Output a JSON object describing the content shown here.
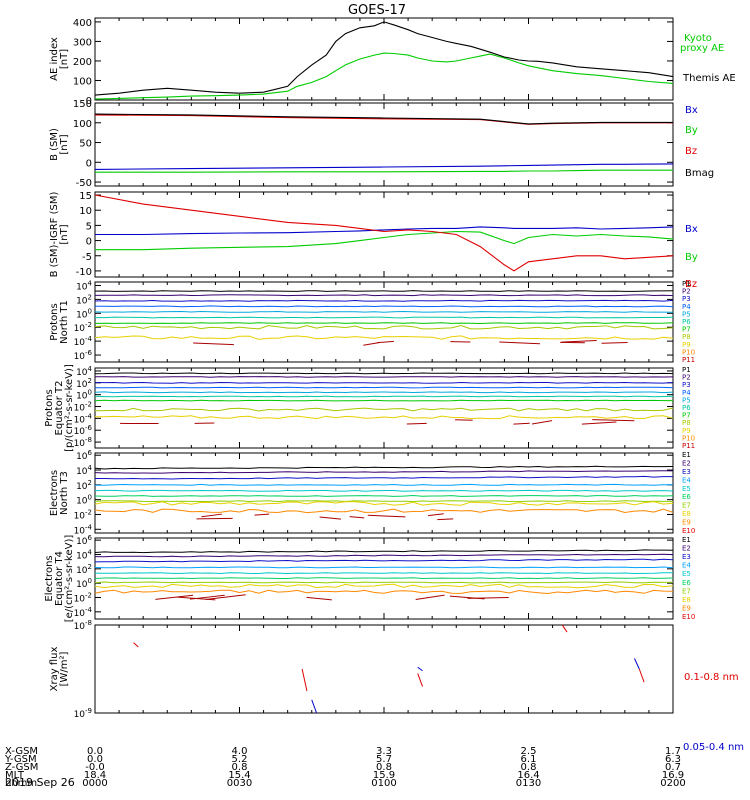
{
  "title": "GOES-17",
  "date": "2019 Sep 26",
  "colors": {
    "black": "#000000",
    "red": "#e00000",
    "green": "#00cc00",
    "blue": "#0000cc",
    "darkred": "#aa0000",
    "p_palette": [
      "#000000",
      "#3a0070",
      "#1010c8",
      "#0060ff",
      "#00a8e0",
      "#00c8a0",
      "#00c800",
      "#a8c800",
      "#e8d000",
      "#ff8800",
      "#c80000"
    ],
    "e_palette": [
      "#000000",
      "#3a0070",
      "#1010c8",
      "#00a0ff",
      "#00c8c8",
      "#00d060",
      "#90d000",
      "#e8d000",
      "#ff8800",
      "#e00000"
    ]
  },
  "ephemeris": {
    "row_labels": [
      "X-GSM",
      "Y-GSM",
      "Z-GSM",
      "MLT",
      "hhmm"
    ],
    "columns": [
      {
        "values": [
          "0.0",
          "0.0",
          "-0.0",
          "18.4",
          "0000"
        ]
      },
      {
        "values": [
          "4.0",
          "5.2",
          "0.8",
          "15.4",
          "0030"
        ]
      },
      {
        "values": [
          "3.3",
          "5.7",
          "0.8",
          "15.9",
          "0100"
        ]
      },
      {
        "values": [
          "2.5",
          "6.1",
          "0.8",
          "16.4",
          "0130"
        ]
      },
      {
        "values": [
          "1.7",
          "6.3",
          "0.7",
          "16.9",
          "0200"
        ]
      }
    ]
  },
  "chart_data": [
    {
      "type": "line",
      "ylabel": "AE index\n[nT]",
      "ylim": [
        0,
        420
      ],
      "yticks": [
        "0",
        "100",
        "200",
        "300",
        "400"
      ],
      "x": [
        0,
        5,
        10,
        15,
        20,
        25,
        30,
        35,
        40,
        42,
        45,
        48,
        50,
        52,
        55,
        58,
        60,
        62,
        65,
        67,
        70,
        73,
        75,
        78,
        80,
        82,
        85,
        88,
        90,
        92,
        95,
        100,
        105,
        110,
        115,
        120
      ],
      "series": [
        {
          "name": "Kyoto proxy AE",
          "color": "green",
          "values": [
            5,
            8,
            12,
            15,
            20,
            22,
            25,
            30,
            45,
            70,
            90,
            120,
            150,
            180,
            210,
            230,
            240,
            238,
            230,
            215,
            200,
            195,
            200,
            215,
            225,
            235,
            215,
            190,
            175,
            165,
            150,
            135,
            125,
            110,
            95,
            85
          ]
        },
        {
          "name": "Themis AE",
          "color": "black",
          "values": [
            25,
            35,
            50,
            60,
            50,
            40,
            35,
            40,
            70,
            120,
            180,
            230,
            300,
            340,
            370,
            380,
            400,
            385,
            360,
            340,
            320,
            300,
            290,
            275,
            260,
            245,
            220,
            205,
            200,
            198,
            190,
            170,
            160,
            150,
            140,
            120
          ]
        }
      ]
    },
    {
      "type": "line",
      "ylabel": "B (SM)\n[nT]",
      "ylim": [
        -60,
        150
      ],
      "yticks": [
        "-50",
        "0",
        "50",
        "100",
        "150"
      ],
      "x": [
        0,
        20,
        40,
        60,
        80,
        85,
        90,
        95,
        100,
        105,
        110,
        120
      ],
      "series": [
        {
          "name": "Bx",
          "color": "blue",
          "values": [
            -18,
            -16,
            -14,
            -12,
            -10,
            -9,
            -8,
            -7,
            -6,
            -5,
            -5,
            -4
          ]
        },
        {
          "name": "By",
          "color": "green",
          "values": [
            -25,
            -25,
            -24,
            -24,
            -23,
            -23,
            -22,
            -22,
            -21,
            -20,
            -20,
            -20
          ]
        },
        {
          "name": "Bz",
          "color": "red",
          "values": [
            120,
            118,
            113,
            110,
            108,
            102,
            96,
            98,
            99,
            100,
            100,
            100
          ]
        },
        {
          "name": "Bmag",
          "color": "black",
          "values": [
            122,
            120,
            115,
            112,
            109,
            103,
            97,
            99,
            100,
            101,
            101,
            101
          ]
        }
      ]
    },
    {
      "type": "line",
      "ylabel": "B (SM)-IGRF (SM)\n[nT]",
      "ylim": [
        -12,
        16
      ],
      "yticks": [
        "-10",
        "-5",
        "0",
        "5",
        "10",
        "15"
      ],
      "x": [
        0,
        10,
        20,
        30,
        40,
        50,
        55,
        60,
        65,
        70,
        75,
        80,
        85,
        87,
        90,
        95,
        100,
        105,
        110,
        115,
        120
      ],
      "series": [
        {
          "name": "Bx",
          "color": "blue",
          "values": [
            2,
            2,
            2.3,
            2.5,
            2.6,
            3,
            3.2,
            3.5,
            3.8,
            4,
            4,
            4.5,
            4.2,
            4,
            4,
            4,
            4.2,
            3.8,
            4,
            4.2,
            4.5
          ]
        },
        {
          "name": "By",
          "color": "green",
          "values": [
            -3,
            -3,
            -2.5,
            -2.2,
            -2,
            -1,
            0,
            1,
            2,
            2.5,
            3,
            2.8,
            0,
            -1,
            1,
            2,
            1.5,
            2,
            1.5,
            1.2,
            0.5
          ]
        },
        {
          "name": "Bz",
          "color": "red",
          "values": [
            15,
            12,
            10,
            8,
            6,
            5,
            4,
            3,
            3.5,
            3,
            2,
            -2,
            -8,
            -10,
            -7,
            -6,
            -5,
            -5,
            -6,
            -5.5,
            -5
          ]
        }
      ]
    },
    {
      "type": "line",
      "ylabel": "Protons\nNorth T1",
      "ylim": [
        -7,
        4.5
      ],
      "log": true,
      "yticks": [
        "10^4",
        "10^2",
        "10^0",
        "10^-2",
        "10^-4",
        "10^-6"
      ],
      "legend": [
        "P1",
        "P2",
        "P3",
        "P4",
        "P5",
        "P6",
        "P7",
        "P8",
        "P9",
        "P10",
        "P11"
      ],
      "levels": [
        3.2,
        2.6,
        1.8,
        1.0,
        0.2,
        -0.6,
        -1.4,
        -2.0,
        -3.5
      ]
    },
    {
      "type": "line",
      "ylabel": "Protons\nEquator T2\n[p/(cm²-s-sr-keV)]",
      "ylim": [
        -9,
        4.5
      ],
      "log": true,
      "yticks": [
        "10^4",
        "10^2",
        "10^0",
        "10^-2",
        "10^-4",
        "10^-6",
        "10^-8"
      ],
      "legend": [
        "P1",
        "P2",
        "P3",
        "P4",
        "P5",
        "P6",
        "P7",
        "P8",
        "P9",
        "P10",
        "P11"
      ],
      "levels": [
        3.6,
        3.0,
        2.0,
        1.2,
        0.4,
        -0.3,
        -1.0,
        -2.5,
        -3.8
      ]
    },
    {
      "type": "line",
      "ylabel": "Electrons\nNorth T3",
      "ylim": [
        -4.5,
        6.3
      ],
      "log": true,
      "yticks": [
        "10^6",
        "10^4",
        "10^2",
        "10^0",
        "10^-2",
        "10^-4"
      ],
      "legend": [
        "E1",
        "E2",
        "E3",
        "E4",
        "E5",
        "E6",
        "E7",
        "E8",
        "E9",
        "E10"
      ],
      "levels": [
        4.2,
        3.6,
        2.8,
        2.0,
        1.2,
        0.5,
        -0.2,
        -0.5,
        -1.5
      ]
    },
    {
      "type": "line",
      "ylabel": "Electrons\nEquator T4\n[e/(cm²-s-sr-keV)]",
      "ylim": [
        -5,
        6.3
      ],
      "log": true,
      "yticks": [
        "10^6",
        "10^4",
        "10^2",
        "10^0",
        "10^-2",
        "10^-4"
      ],
      "legend": [
        "E1",
        "E2",
        "E3",
        "E4",
        "E5",
        "E6",
        "E7",
        "E8",
        "E9",
        "E10"
      ],
      "levels": [
        4.3,
        3.7,
        3.0,
        2.2,
        1.4,
        0.7,
        0.1,
        -0.4,
        -1.2
      ]
    },
    {
      "type": "line",
      "ylabel": "Xray flux\n[W/m²]",
      "ylim": [
        -9,
        -8
      ],
      "log": true,
      "yticks": [
        "10^-8",
        "10^-9"
      ],
      "series": [
        {
          "name": "0.1-0.8 nm",
          "color": "red"
        },
        {
          "name": "0.05-0.4 nm",
          "color": "blue"
        }
      ]
    }
  ]
}
